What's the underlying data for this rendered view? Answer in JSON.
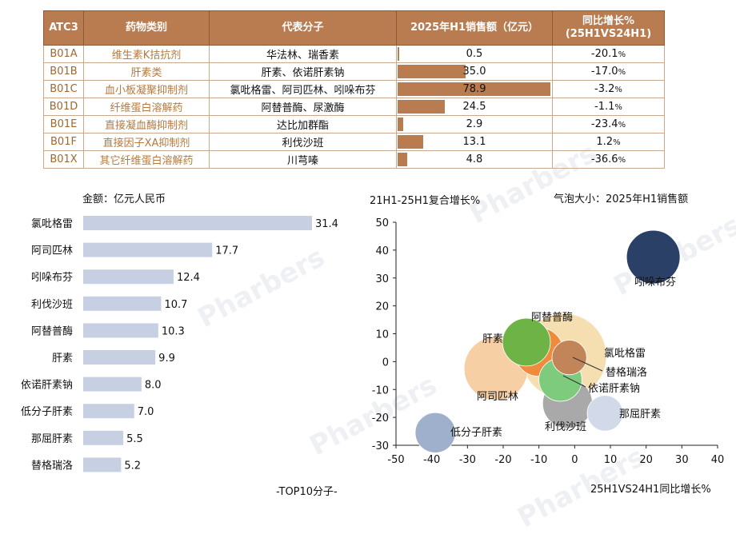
{
  "table": {
    "headers": [
      "ATC3",
      "药物类别",
      "代表分子",
      "2025年H1销售额（亿元）",
      "同比增长%",
      "(25H1VS24H1)"
    ],
    "rows": [
      {
        "code": "B01A",
        "category": "维生素K拮抗剂",
        "molecules": "华法林、瑞香素",
        "sales": 0.5,
        "sales_label": "0.5",
        "growth": "-20.1",
        "pct": "%"
      },
      {
        "code": "B01B",
        "category": "肝素类",
        "molecules": "肝素、依诺肝素钠",
        "sales": 35.0,
        "sales_label": "35.0",
        "growth": "-17.0",
        "pct": "%"
      },
      {
        "code": "B01C",
        "category": "血小板凝聚抑制剂",
        "molecules": "氯吡格雷、阿司匹林、吲哚布芬",
        "sales": 78.9,
        "sales_label": "78.9",
        "growth": "-3.2",
        "pct": "%"
      },
      {
        "code": "B01D",
        "category": "纤维蛋白溶解药",
        "molecules": "阿替普酶、尿激酶",
        "sales": 24.5,
        "sales_label": "24.5",
        "growth": "-1.1",
        "pct": "%"
      },
      {
        "code": "B01E",
        "category": "直接凝血酶抑制剂",
        "molecules": "达比加群酯",
        "sales": 2.9,
        "sales_label": "2.9",
        "growth": "-23.4",
        "pct": "%"
      },
      {
        "code": "B01F",
        "category": "直接因子XA抑制剂",
        "molecules": "利伐沙班",
        "sales": 13.1,
        "sales_label": "13.1",
        "growth": "1.2",
        "pct": "%"
      },
      {
        "code": "B01X",
        "category": "其它纤维蛋白溶解药",
        "molecules": "川芎嗪",
        "sales": 4.8,
        "sales_label": "4.8",
        "growth": "-36.6",
        "pct": "%"
      }
    ]
  },
  "watermark": "Pharbers",
  "chart_data": [
    {
      "type": "bar",
      "orientation": "horizontal",
      "title": "金额：亿元人民币",
      "footer": "-TOP10分子-",
      "color": "#c7d0e2",
      "categories": [
        "氯吡格雷",
        "阿司匹林",
        "吲哚布芬",
        "利伐沙班",
        "阿替普酶",
        "肝素",
        "依诺肝素钠",
        "低分子肝素",
        "那屈肝素",
        "替格瑞洛"
      ],
      "values": [
        31.4,
        17.7,
        12.4,
        10.7,
        10.3,
        9.9,
        8.0,
        7.0,
        5.5,
        5.2
      ],
      "labels": [
        "31.4",
        "17.7",
        "12.4",
        "10.7",
        "10.3",
        "9.9",
        "8.0",
        "7.0",
        "5.5",
        "5.2"
      ],
      "xlim": [
        0,
        40
      ]
    },
    {
      "type": "scatter",
      "subtype": "bubble",
      "ylabel": "21H1-25H1复合增长%",
      "xlabel": "25H1VS24H1同比增长%",
      "size_note": "气泡大小：2025年H1销售额",
      "xlim": [
        -50,
        40
      ],
      "ylim": [
        -30,
        50
      ],
      "xticks": [
        "-50",
        "-40",
        "-30",
        "-20",
        "-10",
        "0",
        "10",
        "20",
        "30",
        "40"
      ],
      "yticks": [
        "50",
        "40",
        "30",
        "20",
        "10",
        "0",
        "-10",
        "-20",
        "-30"
      ],
      "points": [
        {
          "name": "氯吡格雷",
          "x": -3.0,
          "y": 2.0,
          "size": 31.4,
          "color": "#f5deb0"
        },
        {
          "name": "阿司匹林",
          "x": -22.0,
          "y": -2.5,
          "size": 17.7,
          "color": "#f6cfa5"
        },
        {
          "name": "吲哚布芬",
          "x": 22.0,
          "y": 37.5,
          "size": 12.4,
          "color": "#2b4066"
        },
        {
          "name": "利伐沙班",
          "x": -2.0,
          "y": -15.0,
          "size": 10.7,
          "color": "#a9a9a9"
        },
        {
          "name": "阿替普酶",
          "x": -10.0,
          "y": 3.5,
          "size": 10.3,
          "color": "#f08a3c"
        },
        {
          "name": "肝素",
          "x": -13.5,
          "y": 7.0,
          "size": 9.9,
          "color": "#6db345"
        },
        {
          "name": "依诺肝素钠",
          "x": -4.0,
          "y": -6.5,
          "size": 8.0,
          "color": "#7ecb7e"
        },
        {
          "name": "低分子肝素",
          "x": -39.0,
          "y": -25.5,
          "size": 7.0,
          "color": "#9fb0cc"
        },
        {
          "name": "那屈肝素",
          "x": 8.5,
          "y": -18.5,
          "size": 5.5,
          "color": "#d2daea"
        },
        {
          "name": "替格瑞洛",
          "x": -1.5,
          "y": 1.5,
          "size": 5.2,
          "color": "#c2855a"
        }
      ]
    }
  ]
}
